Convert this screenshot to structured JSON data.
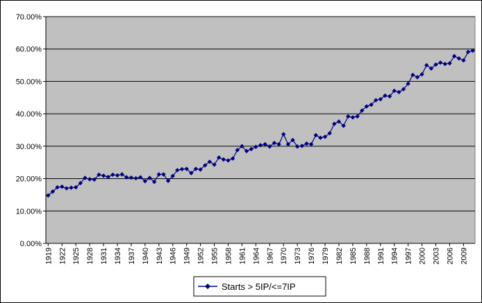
{
  "chart_data": {
    "type": "line",
    "title": "",
    "xlabel": "",
    "ylabel": "",
    "ylim": [
      0,
      70
    ],
    "y_ticks": [
      "0.00%",
      "10.00%",
      "20.00%",
      "30.00%",
      "40.00%",
      "50.00%",
      "60.00%",
      "70.00%"
    ],
    "x_tick_labels": [
      "1919",
      "1922",
      "1925",
      "1928",
      "1931",
      "1934",
      "1937",
      "1940",
      "1943",
      "1946",
      "1949",
      "1952",
      "1955",
      "1958",
      "1961",
      "1964",
      "1967",
      "1970",
      "1973",
      "1976",
      "1979",
      "1982",
      "1985",
      "1988",
      "1991",
      "1994",
      "1997",
      "2000",
      "2003",
      "2006",
      "2009"
    ],
    "grid": "horizontal",
    "legend_position": "bottom",
    "plot_background": "#c0c0c0",
    "series_color": "#000080",
    "x": [
      1919,
      1920,
      1921,
      1922,
      1923,
      1924,
      1925,
      1926,
      1927,
      1928,
      1929,
      1930,
      1931,
      1932,
      1933,
      1934,
      1935,
      1936,
      1937,
      1938,
      1939,
      1940,
      1941,
      1942,
      1943,
      1944,
      1945,
      1946,
      1947,
      1948,
      1949,
      1950,
      1951,
      1952,
      1953,
      1954,
      1955,
      1956,
      1957,
      1958,
      1959,
      1960,
      1961,
      1962,
      1963,
      1964,
      1965,
      1966,
      1967,
      1968,
      1969,
      1970,
      1971,
      1972,
      1973,
      1974,
      1975,
      1976,
      1977,
      1978,
      1979,
      1980,
      1981,
      1982,
      1983,
      1984,
      1985,
      1986,
      1987,
      1988,
      1989,
      1990,
      1991,
      1992,
      1993,
      1994,
      1995,
      1996,
      1997,
      1998,
      1999,
      2000,
      2001,
      2002,
      2003,
      2004,
      2005,
      2006,
      2007,
      2008,
      2009,
      2010,
      2011
    ],
    "series": [
      {
        "name": "Starts > 5IP/<=7IP",
        "values": [
          14.8,
          16.0,
          17.3,
          17.5,
          17.0,
          17.2,
          17.3,
          18.6,
          20.2,
          19.8,
          19.7,
          21.2,
          20.9,
          20.5,
          21.2,
          21.0,
          21.3,
          20.4,
          20.3,
          20.1,
          20.4,
          19.2,
          20.2,
          19.0,
          21.3,
          21.3,
          19.3,
          20.8,
          22.6,
          22.9,
          23.0,
          21.7,
          23.0,
          22.8,
          24.1,
          25.2,
          24.3,
          26.5,
          25.9,
          25.6,
          26.2,
          28.8,
          30.0,
          28.5,
          29.1,
          29.8,
          30.3,
          30.6,
          29.9,
          31.0,
          30.6,
          33.7,
          30.6,
          31.9,
          29.9,
          30.1,
          30.8,
          30.6,
          33.4,
          32.6,
          32.9,
          34.0,
          36.9,
          37.6,
          36.3,
          39.2,
          38.9,
          39.2,
          41.0,
          42.3,
          42.8,
          44.2,
          44.5,
          45.6,
          45.4,
          47.1,
          46.7,
          47.6,
          49.3,
          52.0,
          51.3,
          52.2,
          55.0,
          54.0,
          55.2,
          55.8,
          55.4,
          55.6,
          57.8,
          57.1,
          56.5,
          59.1,
          59.5
        ]
      }
    ]
  }
}
